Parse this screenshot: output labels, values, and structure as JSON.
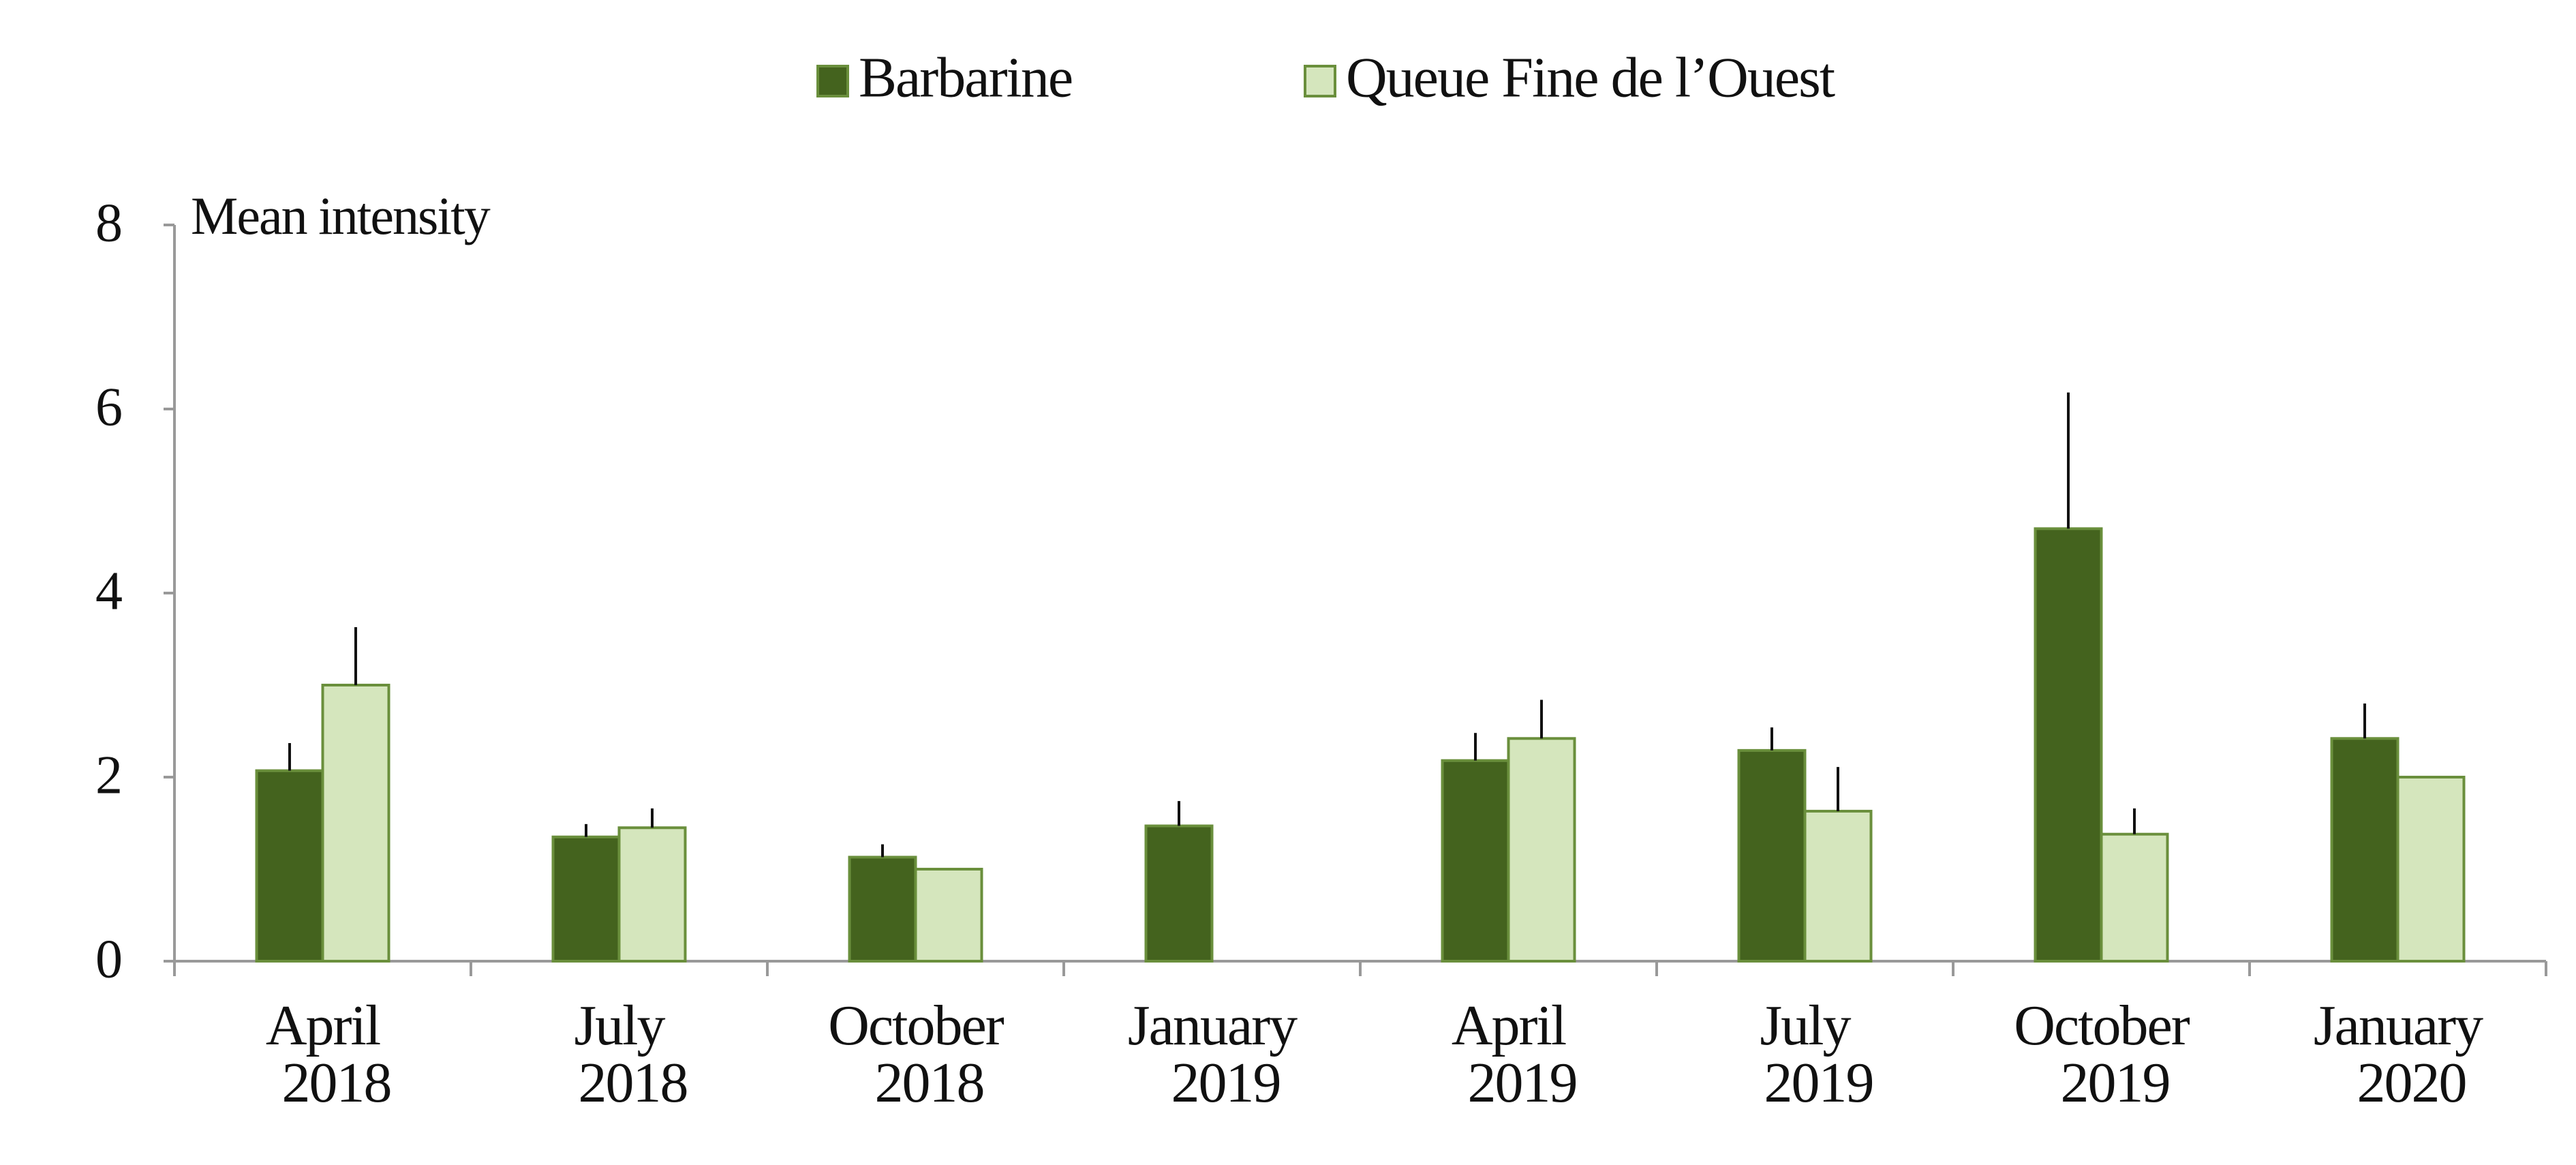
{
  "chart_data": {
    "type": "bar",
    "y_label": "Mean intensity",
    "categories": [
      "April 2018",
      "July 2018",
      "October 2018",
      "January 2019",
      "April 2019",
      "July 2019",
      "October 2019",
      "January 2020"
    ],
    "series": [
      {
        "name": "Barbarine",
        "color": "#44631e",
        "values": [
          2.07,
          1.35,
          1.13,
          1.47,
          2.18,
          2.29,
          4.7,
          2.42
        ],
        "errors": [
          0.3,
          0.14,
          0.14,
          0.27,
          0.3,
          0.25,
          1.48,
          0.38
        ]
      },
      {
        "name": "Queue Fine de l’Ouest",
        "color": "#d5e6bd",
        "values": [
          3.0,
          1.45,
          1.0,
          null,
          2.42,
          1.63,
          1.38,
          2.0
        ],
        "errors": [
          0.63,
          0.21,
          null,
          null,
          0.42,
          0.48,
          0.28,
          null
        ]
      }
    ],
    "ylim": [
      0,
      8
    ],
    "yticks": [
      0,
      2,
      4,
      6,
      8
    ],
    "grid": false,
    "legend": "top"
  }
}
